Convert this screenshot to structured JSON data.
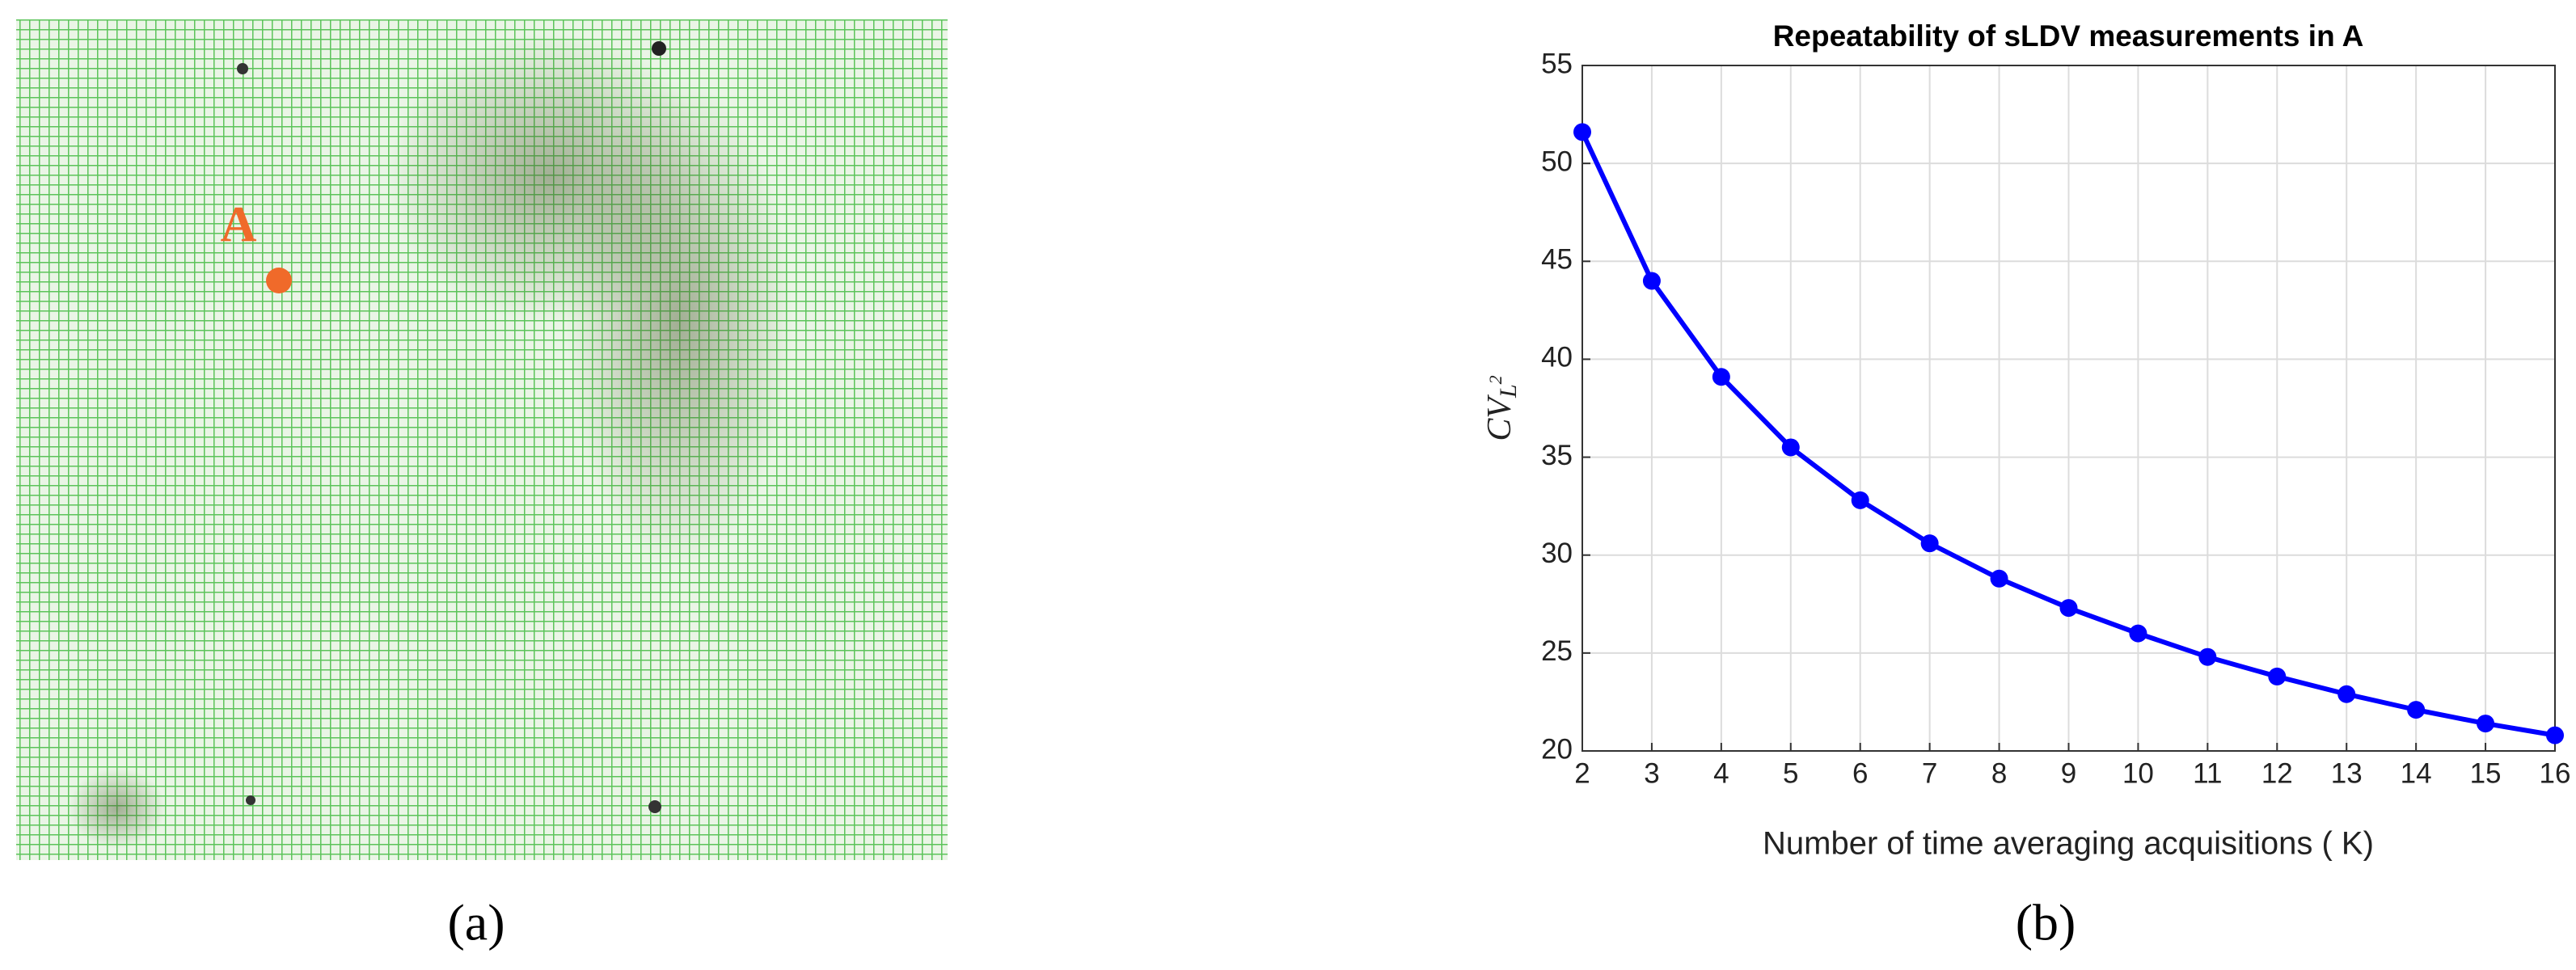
{
  "figure": {
    "panel_labels": [
      "(a)",
      "(b)"
    ],
    "photo_marker_label": "A"
  },
  "chart_data": {
    "type": "line",
    "title": "Repeatability of sLDV measurements in A",
    "x_label": "Number of time averaging acquisitions ( K)",
    "y_label_parts": [
      "CV",
      "L",
      "2"
    ],
    "x": [
      2,
      3,
      4,
      5,
      6,
      7,
      8,
      9,
      10,
      11,
      12,
      13,
      14,
      15,
      16
    ],
    "series": [
      {
        "color": "#0000ff",
        "values": [
          51.6,
          44.0,
          39.1,
          35.5,
          32.8,
          30.6,
          28.8,
          27.3,
          26.0,
          24.8,
          23.8,
          22.9,
          22.1,
          21.4,
          20.8
        ]
      }
    ],
    "xlim": [
      2,
      16
    ],
    "xticks": [
      2,
      3,
      4,
      5,
      6,
      7,
      8,
      9,
      10,
      11,
      12,
      13,
      14,
      15,
      16
    ],
    "ylim": [
      20,
      55
    ],
    "yticks": [
      20,
      25,
      30,
      35,
      40,
      45,
      50,
      55
    ],
    "grid": true
  }
}
